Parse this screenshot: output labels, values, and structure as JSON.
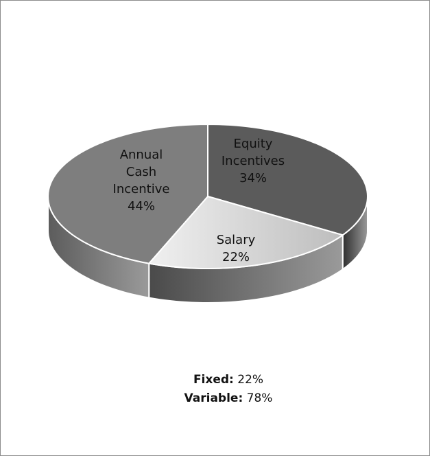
{
  "chart_data": {
    "type": "pie3d",
    "categories": [
      "Equity Incentives",
      "Salary",
      "Annual Cash Incentive"
    ],
    "values": [
      34,
      22,
      44
    ],
    "value_labels": [
      "34%",
      "22%",
      "44%"
    ],
    "colors": [
      "#5b5b5b",
      "#d6d6d6",
      "#7e7e7e"
    ],
    "side_colors": [
      "#2e2e2e",
      "#4a4a4a",
      "#5c5c5c"
    ],
    "annotations": [
      {
        "label": "Fixed:",
        "text": "22%"
      },
      {
        "label": "Variable:",
        "text": "78%"
      }
    ]
  }
}
